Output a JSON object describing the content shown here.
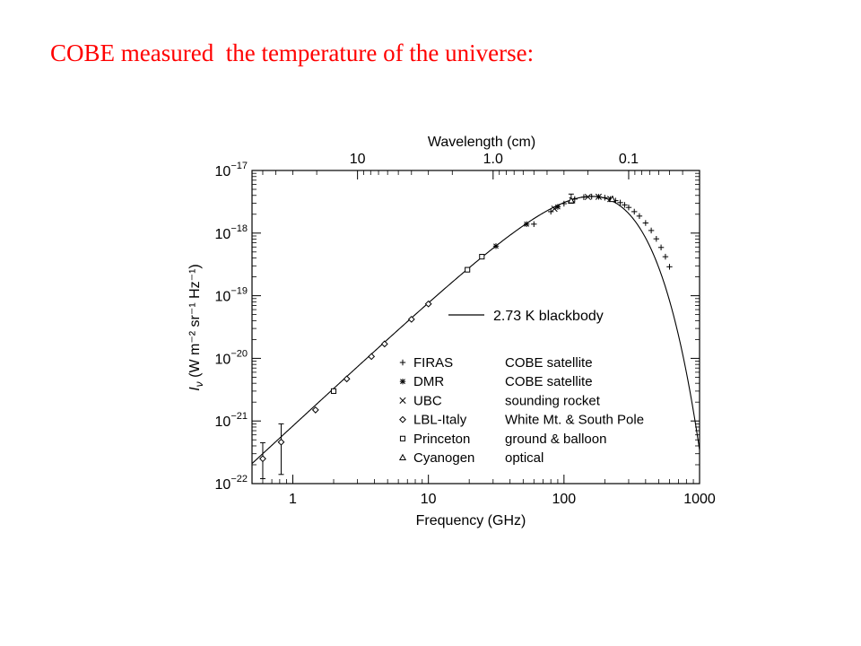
{
  "slide": {
    "title": "COBE measured  the temperature of the universe:"
  },
  "chart_data": {
    "type": "scatter",
    "title": "",
    "xlabel": "Frequency (GHz)",
    "ylabel": "I",
    "ylabel_sub": "ν",
    "ylabel_units": "(W m⁻² sr⁻¹ Hz⁻¹)",
    "xlabel_top": "Wavelength (cm)",
    "x_scale": "log",
    "y_scale": "log",
    "xlim": [
      0.5,
      1000
    ],
    "ylim": [
      1e-22,
      1e-17
    ],
    "x_ticks": [
      {
        "value": 1,
        "label": "1"
      },
      {
        "value": 10,
        "label": "10"
      },
      {
        "value": 100,
        "label": "100"
      },
      {
        "value": 1000,
        "label": "1000"
      }
    ],
    "y_ticks": [
      {
        "value": 1e-17,
        "base": "10",
        "exp": "−17"
      },
      {
        "value": 1e-18,
        "base": "10",
        "exp": "−18"
      },
      {
        "value": 1e-19,
        "base": "10",
        "exp": "−19"
      },
      {
        "value": 1e-20,
        "base": "10",
        "exp": "−20"
      },
      {
        "value": 1e-21,
        "base": "10",
        "exp": "−21"
      },
      {
        "value": 1e-22,
        "base": "10",
        "exp": "−22"
      }
    ],
    "top_ticks": [
      {
        "wavelength_cm": 10,
        "label": "10"
      },
      {
        "wavelength_cm": 1.0,
        "label": "1.0"
      },
      {
        "wavelength_cm": 0.1,
        "label": "0.1"
      }
    ],
    "curve": {
      "name": "2.73 K  blackbody",
      "temperature_K": 2.73
    },
    "legend": {
      "placement": "lower-center",
      "entries": [
        {
          "symbol": "+",
          "name": "FIRAS",
          "desc": "COBE satellite"
        },
        {
          "symbol": "✱",
          "name": "DMR",
          "desc": "COBE satellite"
        },
        {
          "symbol": "×",
          "name": "UBC",
          "desc": "sounding rocket"
        },
        {
          "symbol": "◇",
          "name": "LBL-Italy",
          "desc": "White Mt. & South Pole"
        },
        {
          "symbol": "□",
          "name": "Princeton",
          "desc": "ground & balloon"
        },
        {
          "symbol": "△",
          "name": "Cyanogen",
          "desc": "optical"
        }
      ]
    },
    "series": [
      {
        "name": "FIRAS",
        "marker": "plus",
        "points": [
          [
            60,
            1.39e-18
          ],
          [
            80,
            2.2e-18
          ],
          [
            100,
            2.95e-18
          ],
          [
            120,
            3.5e-18
          ],
          [
            140,
            3.75e-18
          ],
          [
            160,
            3.83e-18
          ],
          [
            180,
            3.8e-18
          ],
          [
            200,
            3.68e-18
          ],
          [
            220,
            3.5e-18
          ],
          [
            240,
            3.3e-18
          ],
          [
            260,
            3.07e-18
          ],
          [
            280,
            2.82e-18
          ],
          [
            300,
            2.57e-18
          ],
          [
            330,
            2.2e-18
          ],
          [
            360,
            1.87e-18
          ],
          [
            400,
            1.45e-18
          ],
          [
            440,
            1.1e-18
          ],
          [
            480,
            8.1e-19
          ],
          [
            520,
            5.9e-19
          ],
          [
            560,
            4.2e-19
          ],
          [
            600,
            2.9e-19
          ]
        ]
      },
      {
        "name": "DMR",
        "marker": "asterisk",
        "points": [
          [
            31.5,
            6.2e-19
          ],
          [
            53,
            1.39e-18
          ],
          [
            90,
            2.62e-18
          ]
        ]
      },
      {
        "name": "UBC",
        "marker": "cross",
        "points": [
          [
            85,
            2.45e-18
          ],
          [
            115,
            3.35e-18
          ],
          [
            150,
            3.78e-18
          ],
          [
            180,
            3.8e-18
          ],
          [
            220,
            3.5e-18
          ]
        ]
      },
      {
        "name": "LBL-Italy",
        "marker": "diamond",
        "points": [
          [
            0.6,
            2.5e-22
          ],
          [
            0.82,
            4.6e-22
          ],
          [
            1.47,
            1.5e-21
          ],
          [
            2.5,
            4.7e-21
          ],
          [
            3.8,
            1.07e-20
          ],
          [
            4.75,
            1.7e-20
          ],
          [
            7.5,
            4.2e-20
          ],
          [
            10,
            7.4e-20
          ]
        ]
      },
      {
        "name": "Princeton",
        "marker": "square",
        "points": [
          [
            2.0,
            3e-21
          ],
          [
            19.4,
            2.6e-19
          ],
          [
            24.8,
            4.2e-19
          ]
        ]
      },
      {
        "name": "Cyanogen",
        "marker": "triangle",
        "points": [
          [
            113,
            3.3e-18
          ],
          [
            227,
            3.47e-18
          ]
        ]
      }
    ],
    "error_bars": [
      {
        "x": 0.6,
        "y_low": 1.2e-22,
        "y_high": 4.5e-22
      },
      {
        "x": 0.82,
        "y_low": 1.4e-22,
        "y_high": 9e-22
      },
      {
        "x": 113,
        "y_low": 3e-18,
        "y_high": 4.2e-18
      }
    ]
  }
}
